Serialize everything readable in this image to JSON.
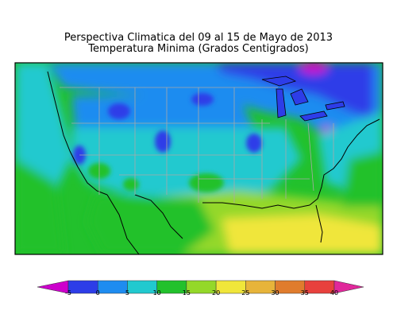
{
  "title": {
    "line1": "Perspectiva Climatica del 09 al 15 de Mayo de 2013",
    "line2": "Temperatura Minima (Grados Centigrados)"
  },
  "legend": {
    "ticks": [
      "-5",
      "0",
      "5",
      "10",
      "15",
      "20",
      "25",
      "30",
      "35",
      "40"
    ],
    "colors": [
      "#cc00cc",
      "#2d3de8",
      "#1e8cf0",
      "#21c9cf",
      "#22c12c",
      "#94d829",
      "#f0e63a",
      "#e7b43a",
      "#e07c2d",
      "#e8413d",
      "#e0289b"
    ]
  },
  "map": {
    "region": "Contiguous United States with parts of Canada and Mexico"
  }
}
